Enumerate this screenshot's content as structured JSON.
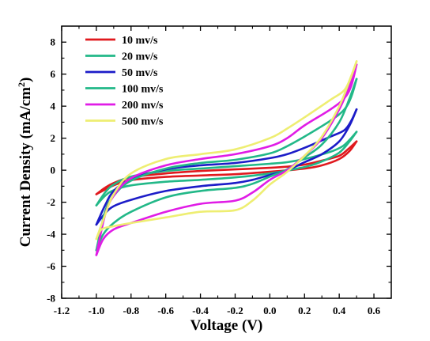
{
  "chart_data": {
    "type": "line",
    "xlabel": "Voltage (V)",
    "ylabel_main": "Current Density (mA/cm",
    "ylabel_sup": "2",
    "ylabel_close": ")",
    "xlim": [
      -1.2,
      0.7
    ],
    "ylim": [
      -8,
      9
    ],
    "x_ticks": [
      -1.2,
      -1.0,
      -0.8,
      -0.6,
      -0.4,
      -0.2,
      0.0,
      0.2,
      0.4,
      0.6
    ],
    "x_tick_labels": [
      "-1.2",
      "-1.0",
      "-0.8",
      "-0.6",
      "-0.4",
      "-0.2",
      "0.0",
      "0.2",
      "0.4",
      "0.6"
    ],
    "y_ticks": [
      -8,
      -6,
      -4,
      -2,
      0,
      2,
      4,
      6,
      8
    ],
    "y_tick_labels": [
      "-8",
      "-6",
      "-4",
      "-2",
      "0",
      "2",
      "4",
      "6",
      "8"
    ],
    "legend_position": "top-left",
    "series": [
      {
        "name": "10 mv/s",
        "color": "#e0191e",
        "forward": [
          [
            -1.0,
            -1.5
          ],
          [
            -0.9,
            -0.95
          ],
          [
            -0.8,
            -0.62
          ],
          [
            -0.6,
            -0.42
          ],
          [
            -0.4,
            -0.33
          ],
          [
            -0.2,
            -0.25
          ],
          [
            0.0,
            -0.1
          ],
          [
            0.2,
            0.1
          ],
          [
            0.3,
            0.3
          ],
          [
            0.4,
            0.7
          ],
          [
            0.46,
            1.2
          ],
          [
            0.5,
            1.8
          ]
        ],
        "reverse": [
          [
            0.5,
            1.8
          ],
          [
            0.45,
            1.3
          ],
          [
            0.4,
            0.9
          ],
          [
            0.3,
            0.6
          ],
          [
            0.2,
            0.35
          ],
          [
            0.1,
            0.22
          ],
          [
            0.0,
            0.15
          ],
          [
            -0.2,
            0.05
          ],
          [
            -0.4,
            -0.05
          ],
          [
            -0.6,
            -0.2
          ],
          [
            -0.8,
            -0.45
          ],
          [
            -0.9,
            -0.8
          ],
          [
            -0.95,
            -1.1
          ],
          [
            -1.0,
            -1.5
          ]
        ]
      },
      {
        "name": "20 mv/s",
        "color": "#22b888",
        "forward": [
          [
            -1.0,
            -2.2
          ],
          [
            -0.95,
            -1.6
          ],
          [
            -0.9,
            -1.25
          ],
          [
            -0.8,
            -0.95
          ],
          [
            -0.6,
            -0.72
          ],
          [
            -0.4,
            -0.6
          ],
          [
            -0.2,
            -0.45
          ],
          [
            0.0,
            -0.2
          ],
          [
            0.2,
            0.2
          ],
          [
            0.3,
            0.55
          ],
          [
            0.4,
            1.1
          ],
          [
            0.46,
            1.8
          ],
          [
            0.5,
            2.4
          ]
        ],
        "reverse": [
          [
            0.5,
            2.4
          ],
          [
            0.46,
            1.9
          ],
          [
            0.42,
            1.5
          ],
          [
            0.35,
            1.15
          ],
          [
            0.2,
            0.7
          ],
          [
            0.1,
            0.5
          ],
          [
            0.0,
            0.4
          ],
          [
            -0.2,
            0.25
          ],
          [
            -0.4,
            0.1
          ],
          [
            -0.6,
            -0.05
          ],
          [
            -0.8,
            -0.4
          ],
          [
            -0.9,
            -0.9
          ],
          [
            -0.95,
            -1.4
          ],
          [
            -1.0,
            -2.2
          ]
        ]
      },
      {
        "name": "50 mv/s",
        "color": "#1c1cc8",
        "forward": [
          [
            -1.0,
            -3.4
          ],
          [
            -0.95,
            -2.7
          ],
          [
            -0.9,
            -2.25
          ],
          [
            -0.8,
            -1.85
          ],
          [
            -0.6,
            -1.3
          ],
          [
            -0.4,
            -1.0
          ],
          [
            -0.2,
            -0.8
          ],
          [
            -0.1,
            -0.6
          ],
          [
            0.0,
            -0.3
          ],
          [
            0.1,
            0.0
          ],
          [
            0.2,
            0.5
          ],
          [
            0.3,
            1.0
          ],
          [
            0.4,
            1.8
          ],
          [
            0.46,
            2.8
          ],
          [
            0.5,
            3.8
          ]
        ],
        "reverse": [
          [
            0.5,
            3.8
          ],
          [
            0.47,
            3.1
          ],
          [
            0.43,
            2.5
          ],
          [
            0.35,
            2.1
          ],
          [
            0.2,
            1.4
          ],
          [
            0.1,
            1.0
          ],
          [
            0.0,
            0.75
          ],
          [
            -0.2,
            0.45
          ],
          [
            -0.4,
            0.3
          ],
          [
            -0.6,
            0.05
          ],
          [
            -0.8,
            -0.55
          ],
          [
            -0.9,
            -1.3
          ],
          [
            -0.95,
            -2.2
          ],
          [
            -1.0,
            -3.4
          ]
        ]
      },
      {
        "name": "100 mv/s",
        "color": "#22b888",
        "forward": [
          [
            -1.0,
            -5.0
          ],
          [
            -0.96,
            -4.0
          ],
          [
            -0.9,
            -3.3
          ],
          [
            -0.8,
            -2.6
          ],
          [
            -0.6,
            -1.7
          ],
          [
            -0.4,
            -1.3
          ],
          [
            -0.2,
            -1.1
          ],
          [
            -0.1,
            -0.85
          ],
          [
            0.0,
            -0.4
          ],
          [
            0.1,
            0.05
          ],
          [
            0.2,
            0.8
          ],
          [
            0.3,
            1.6
          ],
          [
            0.4,
            3.0
          ],
          [
            0.46,
            4.5
          ],
          [
            0.5,
            5.7
          ]
        ],
        "reverse": [
          [
            0.5,
            5.7
          ],
          [
            0.47,
            4.6
          ],
          [
            0.43,
            3.8
          ],
          [
            0.35,
            3.1
          ],
          [
            0.2,
            2.1
          ],
          [
            0.1,
            1.5
          ],
          [
            0.0,
            1.05
          ],
          [
            -0.2,
            0.65
          ],
          [
            -0.4,
            0.45
          ],
          [
            -0.6,
            0.1
          ],
          [
            -0.8,
            -0.65
          ],
          [
            -0.9,
            -1.6
          ],
          [
            -0.95,
            -2.6
          ],
          [
            -1.0,
            -5.0
          ]
        ]
      },
      {
        "name": "200 mv/s",
        "color": "#e01ce6",
        "forward": [
          [
            -1.0,
            -5.3
          ],
          [
            -0.96,
            -4.3
          ],
          [
            -0.9,
            -3.7
          ],
          [
            -0.8,
            -3.3
          ],
          [
            -0.6,
            -2.6
          ],
          [
            -0.4,
            -2.1
          ],
          [
            -0.2,
            -1.9
          ],
          [
            -0.1,
            -1.4
          ],
          [
            0.0,
            -0.6
          ],
          [
            0.1,
            0.0
          ],
          [
            0.2,
            0.9
          ],
          [
            0.3,
            2.0
          ],
          [
            0.4,
            3.8
          ],
          [
            0.46,
            5.3
          ],
          [
            0.5,
            6.6
          ]
        ],
        "reverse": [
          [
            0.5,
            6.6
          ],
          [
            0.47,
            5.3
          ],
          [
            0.43,
            4.5
          ],
          [
            0.35,
            3.8
          ],
          [
            0.2,
            2.8
          ],
          [
            0.1,
            2.0
          ],
          [
            0.0,
            1.5
          ],
          [
            -0.2,
            1.0
          ],
          [
            -0.4,
            0.7
          ],
          [
            -0.6,
            0.3
          ],
          [
            -0.8,
            -0.5
          ],
          [
            -0.9,
            -1.6
          ],
          [
            -0.95,
            -2.8
          ],
          [
            -1.0,
            -5.3
          ]
        ]
      },
      {
        "name": "500 mv/s",
        "color": "#eeee72",
        "forward": [
          [
            -1.0,
            -4.3
          ],
          [
            -0.97,
            -3.7
          ],
          [
            -0.9,
            -3.5
          ],
          [
            -0.8,
            -3.3
          ],
          [
            -0.6,
            -2.95
          ],
          [
            -0.4,
            -2.6
          ],
          [
            -0.2,
            -2.5
          ],
          [
            -0.1,
            -1.9
          ],
          [
            0.0,
            -0.9
          ],
          [
            0.1,
            -0.1
          ],
          [
            0.2,
            0.9
          ],
          [
            0.3,
            2.1
          ],
          [
            0.4,
            4.0
          ],
          [
            0.46,
            5.6
          ],
          [
            0.5,
            6.8
          ]
        ],
        "reverse": [
          [
            0.5,
            6.8
          ],
          [
            0.47,
            5.9
          ],
          [
            0.43,
            5.0
          ],
          [
            0.35,
            4.4
          ],
          [
            0.2,
            3.3
          ],
          [
            0.1,
            2.6
          ],
          [
            0.0,
            2.0
          ],
          [
            -0.2,
            1.3
          ],
          [
            -0.4,
            1.0
          ],
          [
            -0.6,
            0.7
          ],
          [
            -0.8,
            -0.2
          ],
          [
            -0.9,
            -1.5
          ],
          [
            -0.95,
            -2.8
          ],
          [
            -1.0,
            -4.3
          ]
        ]
      }
    ]
  }
}
